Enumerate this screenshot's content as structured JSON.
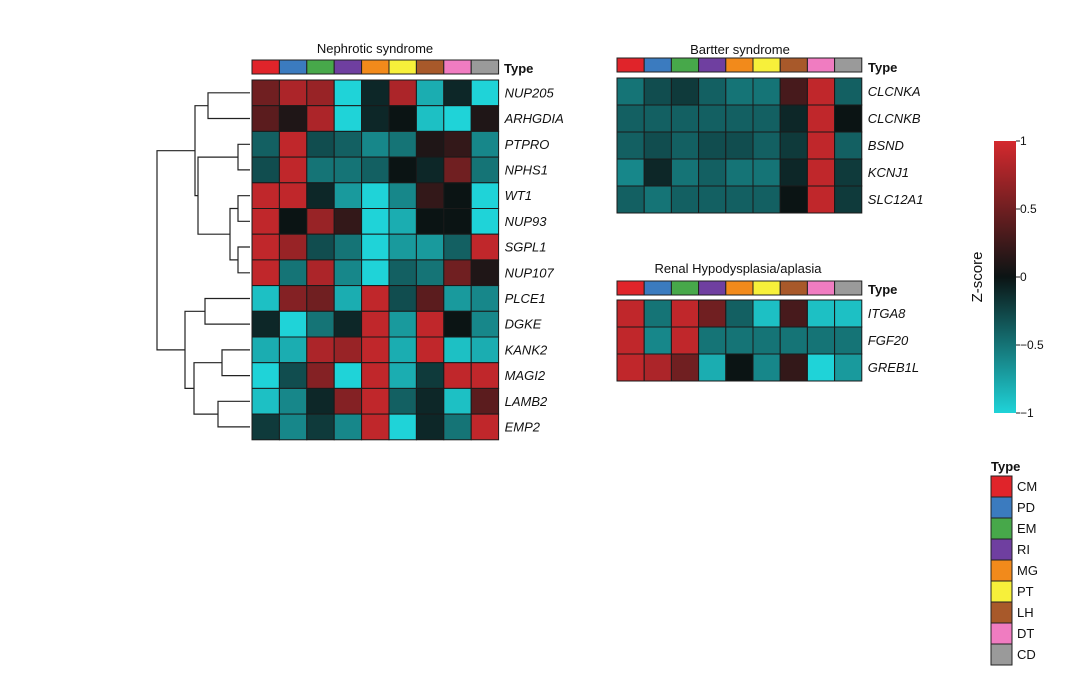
{
  "chart_data": {
    "type": "heatmap",
    "type_label": "Type",
    "cell_types": [
      "CM",
      "PD",
      "EM",
      "RI",
      "MG",
      "PT",
      "LH",
      "DT",
      "CD"
    ],
    "type_colors": {
      "CM": "#e0242a",
      "PD": "#3b7bbf",
      "EM": "#47a84a",
      "RI": "#6f3fa0",
      "MG": "#f28a1b",
      "PT": "#f7f03a",
      "LH": "#a8592a",
      "DT": "#f07cc1",
      "CD": "#9a9a9a"
    },
    "colorbar": {
      "title": "Z-score",
      "range": [
        -1,
        1
      ],
      "ticks": [
        "1",
        "0.5",
        "0",
        "−0.5",
        "−1"
      ],
      "tick_values": [
        1,
        0.5,
        0,
        -0.5,
        -1
      ],
      "colors": {
        "low": "#1fd3d8",
        "mid": "#0b1414",
        "high": "#d4292e"
      }
    },
    "legend": {
      "title": "Type",
      "items": [
        "CM",
        "PD",
        "EM",
        "RI",
        "MG",
        "PT",
        "LH",
        "DT",
        "CD"
      ]
    },
    "panels": [
      {
        "id": "nephrotic",
        "title": "Nephrotic syndrome",
        "has_dendrogram": true,
        "genes": [
          "NUP205",
          "ARHGDIA",
          "PTPRO",
          "NPHS1",
          "WT1",
          "NUP93",
          "SGPL1",
          "NUP107",
          "PLCE1",
          "DGKE",
          "KANK2",
          "MAGI2",
          "LAMB2",
          "EMP2"
        ],
        "values": [
          [
            0.5,
            0.8,
            0.7,
            -1.0,
            -0.1,
            0.8,
            -0.8,
            -0.1,
            -1.0
          ],
          [
            0.4,
            0.1,
            0.8,
            -1.0,
            -0.1,
            0.0,
            -0.9,
            -1.0,
            0.1
          ],
          [
            -0.4,
            0.9,
            -0.3,
            -0.4,
            -0.6,
            -0.5,
            0.1,
            0.2,
            -0.6
          ],
          [
            -0.3,
            0.9,
            -0.5,
            -0.5,
            -0.4,
            0.0,
            -0.1,
            0.5,
            -0.5
          ],
          [
            0.9,
            0.9,
            -0.1,
            -0.7,
            -1.0,
            -0.6,
            0.2,
            0.0,
            -1.0
          ],
          [
            0.9,
            0.0,
            0.7,
            0.2,
            -1.0,
            -0.8,
            0.0,
            0.0,
            -1.0
          ],
          [
            0.9,
            0.7,
            -0.3,
            -0.5,
            -1.0,
            -0.7,
            -0.7,
            -0.4,
            0.9
          ],
          [
            0.9,
            -0.5,
            0.8,
            -0.6,
            -1.0,
            -0.4,
            -0.5,
            0.5,
            0.1
          ],
          [
            -0.9,
            0.6,
            0.5,
            -0.8,
            0.9,
            -0.3,
            0.4,
            -0.7,
            -0.6
          ],
          [
            -0.1,
            -1.0,
            -0.5,
            -0.1,
            0.9,
            -0.7,
            0.9,
            0.0,
            -0.6
          ],
          [
            -0.8,
            -0.8,
            0.8,
            0.7,
            0.9,
            -0.8,
            0.9,
            -0.9,
            -0.8
          ],
          [
            -1.0,
            -0.3,
            0.6,
            -1.0,
            0.9,
            -0.8,
            -0.2,
            0.9,
            0.9
          ],
          [
            -0.9,
            -0.6,
            -0.1,
            0.6,
            0.9,
            -0.4,
            -0.1,
            -0.9,
            0.4
          ],
          [
            -0.2,
            -0.6,
            -0.2,
            -0.6,
            0.9,
            -1.0,
            -0.1,
            -0.5,
            0.9
          ]
        ]
      },
      {
        "id": "bartter",
        "title": "Bartter syndrome",
        "has_dendrogram": false,
        "genes": [
          "CLCNKA",
          "CLCNKB",
          "BSND",
          "KCNJ1",
          "SLC12A1"
        ],
        "values": [
          [
            -0.5,
            -0.3,
            -0.2,
            -0.4,
            -0.5,
            -0.5,
            0.3,
            0.9,
            -0.4
          ],
          [
            -0.4,
            -0.4,
            -0.4,
            -0.4,
            -0.4,
            -0.4,
            -0.1,
            0.9,
            0.0
          ],
          [
            -0.4,
            -0.3,
            -0.4,
            -0.3,
            -0.3,
            -0.4,
            -0.2,
            0.9,
            -0.4
          ],
          [
            -0.6,
            -0.1,
            -0.5,
            -0.4,
            -0.5,
            -0.5,
            -0.1,
            0.9,
            -0.2
          ],
          [
            -0.4,
            -0.5,
            -0.4,
            -0.4,
            -0.4,
            -0.4,
            0.0,
            0.9,
            -0.2
          ]
        ]
      },
      {
        "id": "renal",
        "title": "Renal Hypodysplasia/aplasia",
        "has_dendrogram": false,
        "genes": [
          "ITGA8",
          "FGF20",
          "GREB1L"
        ],
        "values": [
          [
            0.9,
            -0.5,
            0.9,
            0.5,
            -0.4,
            -0.9,
            0.3,
            -0.9,
            -0.9
          ],
          [
            0.9,
            -0.6,
            0.9,
            -0.5,
            -0.5,
            -0.5,
            -0.5,
            -0.5,
            -0.5
          ],
          [
            0.9,
            0.8,
            0.5,
            -0.8,
            0.0,
            -0.6,
            0.2,
            -1.0,
            -0.7
          ]
        ]
      }
    ]
  }
}
